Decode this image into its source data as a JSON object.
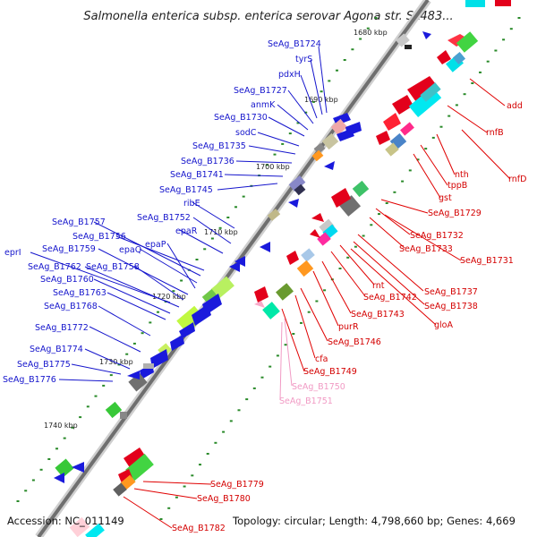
{
  "title": "Salmonella enterica subsp. enterica serovar Agona str. SL483...",
  "footer": {
    "accession": "Accession: NC_011149",
    "topology": "Topology: circular; Length: 4,798,660 bp; Genes: 4,669"
  },
  "kbp_labels": [
    "1680 kbp",
    "1690 kbp",
    "1700 kbp",
    "1710 kbp",
    "1720 kbp",
    "1730 kbp",
    "1740 kbp"
  ],
  "genes_left": [
    "SeAg_B1724",
    "tyrS",
    "pdxH",
    "SeAg_B1727",
    "anmK",
    "SeAg_B1730",
    "sodC",
    "SeAg_B1735",
    "SeAg_B1736",
    "SeAg_B1741",
    "SeAg_B1745",
    "ribE",
    "SeAg_B1752",
    "epaR",
    "SeAg_B1757",
    "SeAg_B1756",
    "epaQ",
    "epaP",
    "eprI",
    "SeAg_B1759",
    "SeAg_B1762",
    "SeAg_B1758",
    "SeAg_B1760",
    "SeAg_B1763",
    "SeAg_B1768",
    "SeAg_B1772",
    "SeAg_B1774",
    "SeAg_B1775",
    "SeAg_B1776"
  ],
  "genes_right": [
    "add",
    "rnfB",
    "rnfD",
    "nth",
    "tppB",
    "gst",
    "SeAg_B1729",
    "SeAg_B1732",
    "SeAg_B1733",
    "SeAg_B1731",
    "rnt",
    "SeAg_B1737",
    "SeAg_B1742",
    "SeAg_B1738",
    "SeAg_B1743",
    "gloA",
    "purR",
    "SeAg_B1746",
    "cfa",
    "SeAg_B1749",
    "SeAg_B1779",
    "SeAg_B1780",
    "SeAg_B1782"
  ],
  "genes_pink": [
    "SeAg_B1750",
    "SeAg_B1751"
  ],
  "colors": {
    "forward": "#1a1adc",
    "reverse": "#e3001b",
    "label_left": "#1515cc",
    "label_right": "#d40000",
    "label_pink": "#f19ac4",
    "backbone": "#777777"
  }
}
